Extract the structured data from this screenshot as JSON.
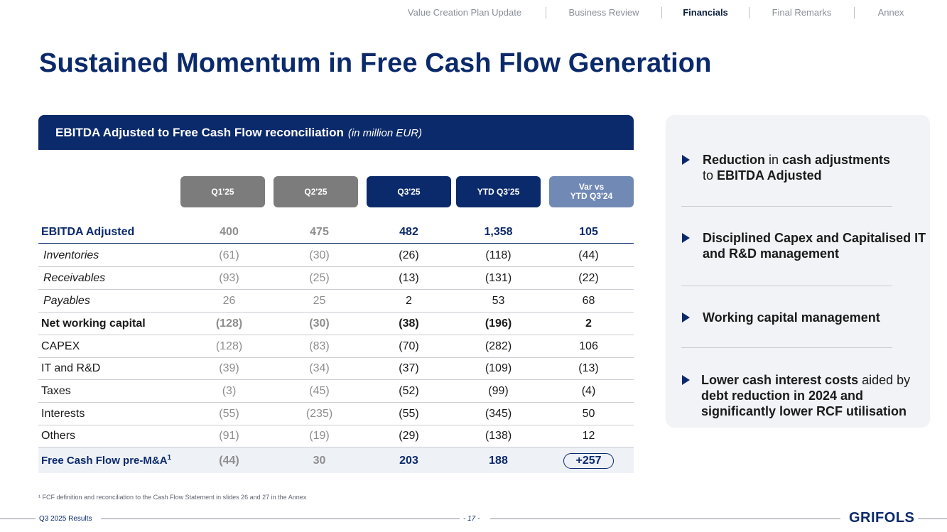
{
  "nav": {
    "items": [
      "Value Creation Plan Update",
      "Business Review",
      "Financials",
      "Final Remarks",
      "Annex"
    ],
    "active": "Financials"
  },
  "title": "Sustained Momentum in Free Cash Flow Generation",
  "table": {
    "title": "EBITDA Adjusted to Free Cash Flow reconciliation",
    "unit": "(in million EUR)",
    "columns": [
      "Q1'25",
      "Q2'25",
      "Q3'25",
      "YTD Q3'25",
      "Var vs",
      "YTD Q3'24"
    ],
    "rows": [
      {
        "label": "EBITDA Adjusted",
        "values": [
          "400",
          "475",
          "482",
          "1,358",
          "105"
        ]
      },
      {
        "label": "Inventories",
        "values": [
          "(61)",
          "(30)",
          "(26)",
          "(118)",
          "(44)"
        ]
      },
      {
        "label": "Receivables",
        "values": [
          "(93)",
          "(25)",
          "(13)",
          "(131)",
          "(22)"
        ]
      },
      {
        "label": "Payables",
        "values": [
          "26",
          "25",
          "2",
          "53",
          "68"
        ]
      },
      {
        "label": "Net working capital",
        "values": [
          "(128)",
          "(30)",
          "(38)",
          "(196)",
          "2"
        ]
      },
      {
        "label": "CAPEX",
        "values": [
          "(128)",
          "(83)",
          "(70)",
          "(282)",
          "106"
        ]
      },
      {
        "label": "IT and R&D",
        "values": [
          "(39)",
          "(34)",
          "(37)",
          "(109)",
          "(13)"
        ]
      },
      {
        "label": "Taxes",
        "values": [
          "(3)",
          "(45)",
          "(52)",
          "(99)",
          "(4)"
        ]
      },
      {
        "label": "Interests",
        "values": [
          "(55)",
          "(235)",
          "(55)",
          "(345)",
          "50"
        ]
      },
      {
        "label": "Others",
        "values": [
          "(91)",
          "(19)",
          "(29)",
          "(138)",
          "12"
        ]
      },
      {
        "label": "Free Cash Flow pre-M&A",
        "sup": "1",
        "values": [
          "(44)",
          "30",
          "203",
          "188",
          "+257"
        ]
      }
    ]
  },
  "highlights": [
    {
      "parts": [
        "Reduction",
        " in ",
        "cash adjustments",
        " to ",
        "EBITDA Adjusted"
      ]
    },
    {
      "parts": [
        "Disciplined Capex and Capitalised IT and R&D management"
      ]
    },
    {
      "parts": [
        "Working capital management"
      ]
    },
    {
      "parts": [
        "Lower cash interest costs",
        " aided by ",
        "debt reduction in 2024 and significantly lower RCF utilisation"
      ]
    }
  ],
  "footnote": "¹ FCF definition and reconciliation to the Cash Flow Statement in slides 26 and 27 in the Annex",
  "footer": {
    "left": "Q3 2025 Results",
    "page": "- 17 -",
    "logo": "GRIFOLS"
  },
  "colors": {
    "navy": "#0b2a6b",
    "grey": "#7d7c7c",
    "light_blue": "#7189b5"
  }
}
